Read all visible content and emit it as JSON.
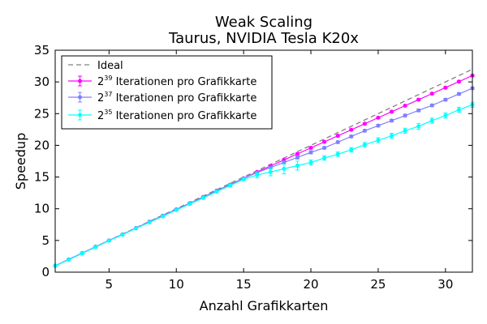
{
  "chart_data": {
    "type": "line",
    "title": "Weak Scaling",
    "subtitle": "Taurus, NVIDIA Tesla K20x",
    "xlabel": "Anzahl Grafikkarten",
    "ylabel": "Speedup",
    "xlim": [
      1,
      32
    ],
    "ylim": [
      0,
      35
    ],
    "xticks": [
      5,
      10,
      15,
      20,
      25,
      30
    ],
    "yticks": [
      0,
      5,
      10,
      15,
      20,
      25,
      30,
      35
    ],
    "grid": false,
    "legend_position": "top-left",
    "x": [
      1,
      2,
      3,
      4,
      5,
      6,
      7,
      8,
      9,
      10,
      11,
      12,
      13,
      14,
      15,
      16,
      17,
      18,
      19,
      20,
      21,
      22,
      23,
      24,
      25,
      26,
      27,
      28,
      29,
      30,
      31,
      32
    ],
    "series": [
      {
        "name": "Ideal",
        "style": "dashed",
        "color": "#808080",
        "values": [
          1,
          2,
          3,
          4,
          5,
          6,
          7,
          8,
          9,
          10,
          11,
          12,
          13,
          14,
          15,
          16,
          17,
          18,
          19,
          20,
          21,
          22,
          23,
          24,
          25,
          26,
          27,
          28,
          29,
          30,
          31,
          32
        ]
      },
      {
        "name_base": "2",
        "name_exp": "39",
        "name_rest": " Iterationen pro Grafikkarte",
        "color": "#ff00ff",
        "values": [
          1.0,
          2.0,
          3.0,
          4.0,
          5.0,
          5.95,
          6.95,
          7.95,
          8.9,
          9.9,
          10.85,
          11.85,
          12.85,
          13.8,
          14.8,
          15.8,
          16.75,
          17.7,
          18.65,
          19.6,
          20.55,
          21.5,
          22.45,
          23.4,
          24.35,
          25.3,
          26.25,
          27.2,
          28.15,
          29.1,
          30.05,
          31.0
        ],
        "errors": [
          0.1,
          0.1,
          0.1,
          0.1,
          0.1,
          0.1,
          0.1,
          0.1,
          0.1,
          0.1,
          0.1,
          0.1,
          0.1,
          0.1,
          0.1,
          0.1,
          0.15,
          0.15,
          0.15,
          0.15,
          0.15,
          0.15,
          0.15,
          0.15,
          0.15,
          0.15,
          0.15,
          0.15,
          0.15,
          0.15,
          0.15,
          0.15
        ]
      },
      {
        "name_base": "2",
        "name_exp": "37",
        "name_rest": " Iterationen pro Grafikkarte",
        "color": "#8080ff",
        "values": [
          1.0,
          2.0,
          3.0,
          4.0,
          5.0,
          5.95,
          6.95,
          7.95,
          8.9,
          9.9,
          10.85,
          11.85,
          12.85,
          13.8,
          14.8,
          15.7,
          16.5,
          17.3,
          18.1,
          18.9,
          19.6,
          20.5,
          21.4,
          22.3,
          23.1,
          23.9,
          24.7,
          25.5,
          26.3,
          27.2,
          28.1,
          29.0
        ],
        "errors": [
          0.1,
          0.1,
          0.1,
          0.1,
          0.1,
          0.1,
          0.1,
          0.1,
          0.1,
          0.1,
          0.1,
          0.1,
          0.1,
          0.1,
          0.1,
          0.15,
          0.2,
          0.25,
          0.25,
          0.25,
          0.2,
          0.2,
          0.2,
          0.2,
          0.2,
          0.2,
          0.2,
          0.2,
          0.2,
          0.2,
          0.2,
          0.2
        ]
      },
      {
        "name_base": "2",
        "name_exp": "35",
        "name_rest": " Iterationen pro Grafikkarte",
        "color": "#00ffff",
        "values": [
          1.0,
          1.95,
          2.95,
          3.95,
          4.95,
          5.9,
          6.9,
          7.85,
          8.8,
          9.8,
          10.75,
          11.7,
          12.7,
          13.65,
          14.65,
          15.3,
          15.8,
          16.3,
          16.8,
          17.3,
          18.0,
          18.6,
          19.3,
          20.1,
          20.8,
          21.5,
          22.3,
          23.0,
          23.9,
          24.7,
          25.6,
          26.4
        ],
        "errors": [
          0.1,
          0.1,
          0.15,
          0.1,
          0.1,
          0.1,
          0.1,
          0.1,
          0.1,
          0.1,
          0.1,
          0.1,
          0.1,
          0.2,
          0.2,
          0.4,
          0.6,
          0.8,
          0.7,
          0.4,
          0.35,
          0.35,
          0.35,
          0.35,
          0.4,
          0.4,
          0.4,
          0.45,
          0.4,
          0.4,
          0.4,
          0.4
        ]
      }
    ]
  }
}
